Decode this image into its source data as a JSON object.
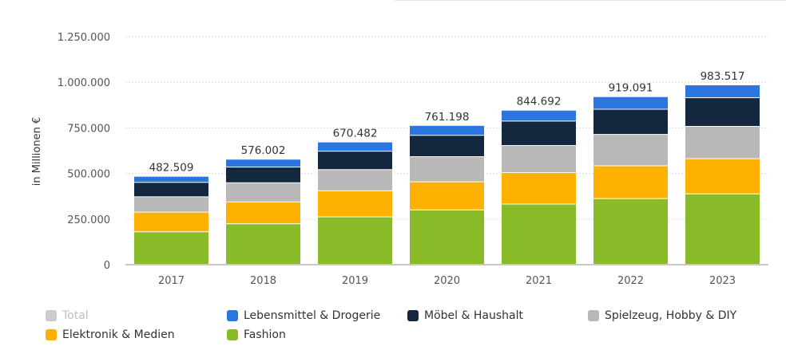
{
  "chart_data": {
    "type": "bar",
    "stacked": true,
    "title": "",
    "xlabel": "",
    "ylabel": "in Millionen €",
    "ylim": [
      0,
      1250000
    ],
    "yticks": [
      0,
      250000,
      500000,
      750000,
      1000000,
      1250000
    ],
    "ytick_labels": [
      "0",
      "250.000",
      "500.000",
      "750.000",
      "1.000.000",
      "1.250.000"
    ],
    "grid": true,
    "legend_position": "bottom",
    "categories": [
      "2017",
      "2018",
      "2019",
      "2020",
      "2021",
      "2022",
      "2023"
    ],
    "totals": [
      482509,
      576002,
      670482,
      761198,
      844692,
      919091,
      983517
    ],
    "total_labels": [
      "482.509",
      "576.002",
      "670.482",
      "761.198",
      "844.692",
      "919.091",
      "983.517"
    ],
    "series": [
      {
        "name": "Fashion",
        "color": "#88bb27",
        "values": [
          178000,
          222000,
          260000,
          298000,
          330000,
          360000,
          386000
        ]
      },
      {
        "name": "Elektronik & Medien",
        "color": "#ffb100",
        "values": [
          108000,
          120000,
          143000,
          154000,
          173000,
          180000,
          193000
        ]
      },
      {
        "name": "Spielzeug, Hobby & DIY",
        "color": "#b8b8b8",
        "values": [
          84000,
          105000,
          116000,
          138000,
          148000,
          172000,
          177000
        ]
      },
      {
        "name": "Möbel & Haushalt",
        "color": "#13283f",
        "values": [
          79000,
          86000,
          101000,
          117000,
          134000,
          138000,
          157000
        ]
      },
      {
        "name": "Lebensmittel & Drogerie",
        "color": "#2b76de",
        "values": [
          33509,
          43002,
          50482,
          54198,
          59692,
          69091,
          70517
        ]
      }
    ],
    "legend": [
      {
        "name": "Total",
        "color": "#cccccc",
        "hidden": true
      },
      {
        "name": "Lebensmittel & Drogerie",
        "color": "#2b76de",
        "hidden": false
      },
      {
        "name": "Möbel & Haushalt",
        "color": "#13283f",
        "hidden": false
      },
      {
        "name": "Spielzeug, Hobby & DIY",
        "color": "#b8b8b8",
        "hidden": false
      },
      {
        "name": "Elektronik & Medien",
        "color": "#ffb100",
        "hidden": false
      },
      {
        "name": "Fashion",
        "color": "#88bb27",
        "hidden": false
      }
    ]
  }
}
